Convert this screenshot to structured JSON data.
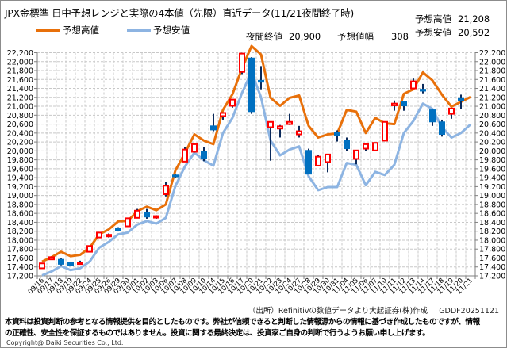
{
  "header": {
    "title": "JPX金標準 日中予想レンジと実際の4本値（先限）直近データ(11/21夜間終了時)",
    "legend_high": "予想高値",
    "legend_low": "予想安値",
    "forecast_high_label": "予想高値",
    "forecast_high_value": "21,208",
    "forecast_low_label": "予想安値",
    "forecast_low_value": "20,592",
    "night_close_label": "夜間終値",
    "night_close_value": "20,900",
    "range_label": "予想値幅",
    "range_value": "308"
  },
  "footer": {
    "source": "（出所）Refinitivの数値データより大起証券(株)作成",
    "code": "GDDF20251121",
    "disclaimer_1": "本資料は投資判断の参考となる情報提供を目的としたものです。弊社が信頼できると判断した情報源からの情報に基づき作成したものですが、情報",
    "disclaimer_2": "の正確性、安全性を保証するものではありません。投資に関する最終決定は、投資家ご自身の判断で行うようお願い申し上げます。",
    "copyright": "Copyright@ Daiki Securities Co., Ltd."
  },
  "colors": {
    "forecast_high": "#E8700A",
    "forecast_low": "#8DB4E2",
    "up_candle": "#FF0000",
    "down_candle": "#0070C0",
    "wick": "#0B2A5B"
  },
  "chart_data": {
    "type": "candlestick+line",
    "title": "JPX金標準 日中予想レンジと実際の4本値（先限）直近データ(11/21夜間終了時)",
    "ylim": [
      17200,
      22200
    ],
    "ytick_step": 200,
    "grid": true,
    "legend_position": "top-left",
    "categories": [
      "09/16",
      "09/17",
      "09/18",
      "09/19",
      "09/22",
      "09/24",
      "09/25",
      "09/26",
      "09/29",
      "09/30",
      "10/01",
      "10/02",
      "10/03",
      "10/06",
      "10/07",
      "10/08",
      "10/09",
      "10/10",
      "10/14",
      "10/15",
      "10/16",
      "10/17",
      "10/20",
      "10/21",
      "10/22",
      "10/23",
      "10/24",
      "10/27",
      "10/28",
      "10/29",
      "10/30",
      "10/31",
      "11/04",
      "11/05",
      "11/06",
      "11/07",
      "11/10",
      "11/11",
      "11/12",
      "11/13",
      "11/14",
      "11/17",
      "11/18",
      "11/19",
      "11/20",
      "11/21"
    ],
    "series": [
      {
        "name": "予想高値",
        "values": [
          17520,
          17620,
          17740,
          17640,
          17670,
          17830,
          18130,
          18240,
          18420,
          18430,
          18650,
          18750,
          18670,
          18800,
          19560,
          19950,
          20370,
          20230,
          20150,
          20920,
          21270,
          21850,
          22350,
          22160,
          21190,
          21010,
          21190,
          21240,
          20560,
          20300,
          20370,
          20390,
          20920,
          20880,
          20400,
          20740,
          20620,
          20600,
          21280,
          21380,
          21760,
          21580,
          21260,
          20990,
          21100,
          21208
        ]
      },
      {
        "name": "予想安値",
        "values": [
          17210,
          17300,
          17420,
          17330,
          17370,
          17520,
          17830,
          17960,
          18130,
          18170,
          18350,
          18430,
          18370,
          18500,
          19210,
          19650,
          19960,
          19790,
          19670,
          20400,
          20740,
          21300,
          21770,
          21200,
          20230,
          19900,
          20030,
          20100,
          19430,
          19120,
          19190,
          19190,
          19730,
          19690,
          19230,
          19530,
          19460,
          19690,
          20400,
          20670,
          21060,
          20940,
          20530,
          20300,
          20400,
          20592
        ]
      }
    ],
    "ohlc_fields": [
      "open",
      "high",
      "low",
      "close"
    ],
    "ohlc": [
      [
        17370,
        17490,
        17360,
        17480
      ],
      [
        17570,
        17630,
        17560,
        17620
      ],
      [
        17570,
        17590,
        17440,
        17460
      ],
      [
        17500,
        17520,
        17420,
        17430
      ],
      [
        17480,
        17540,
        17470,
        17500
      ],
      [
        17740,
        17880,
        17730,
        17870
      ],
      [
        18060,
        18180,
        18050,
        18170
      ],
      [
        18100,
        18150,
        18060,
        18120
      ],
      [
        18270,
        18290,
        18200,
        18220
      ],
      [
        18310,
        18500,
        18300,
        18490
      ],
      [
        18500,
        18700,
        18490,
        18660
      ],
      [
        18630,
        18700,
        18480,
        18520
      ],
      [
        18510,
        18560,
        18480,
        18540
      ],
      [
        19030,
        19310,
        18980,
        19220
      ],
      [
        19460,
        19480,
        19400,
        19420
      ],
      [
        19760,
        20080,
        19750,
        20030
      ],
      [
        19980,
        20170,
        19960,
        20150
      ],
      [
        19990,
        20080,
        19770,
        19820
      ],
      [
        20560,
        20830,
        20440,
        20470
      ],
      [
        20780,
        20860,
        20700,
        20850
      ],
      [
        21010,
        21160,
        20970,
        21150
      ],
      [
        21770,
        22200,
        21720,
        22180
      ],
      [
        22080,
        22100,
        20830,
        20880
      ],
      [
        21580,
        21900,
        21380,
        21540
      ],
      [
        20530,
        20660,
        19780,
        20650
      ],
      [
        20500,
        20580,
        20300,
        20550
      ],
      [
        20600,
        20830,
        20580,
        20650
      ],
      [
        20370,
        20560,
        20300,
        20440
      ],
      [
        20010,
        20050,
        19480,
        19480
      ],
      [
        19670,
        19900,
        19660,
        19870
      ],
      [
        19750,
        19930,
        19520,
        19920
      ],
      [
        20420,
        20460,
        20210,
        20350
      ],
      [
        20240,
        20300,
        19990,
        20050
      ],
      [
        19820,
        20020,
        19700,
        20010
      ],
      [
        20050,
        20160,
        19990,
        20150
      ],
      [
        20010,
        20190,
        20000,
        20180
      ],
      [
        20230,
        20660,
        20220,
        20650
      ],
      [
        21020,
        21130,
        20900,
        21060
      ],
      [
        21100,
        21120,
        20900,
        21010
      ],
      [
        21400,
        21620,
        21390,
        21560
      ],
      [
        21380,
        21500,
        21290,
        21340
      ],
      [
        20920,
        20940,
        20560,
        20650
      ],
      [
        20650,
        20700,
        20320,
        20370
      ],
      [
        20830,
        20960,
        20720,
        20950
      ],
      [
        21190,
        21260,
        20940,
        21120
      ],
      null
    ]
  }
}
